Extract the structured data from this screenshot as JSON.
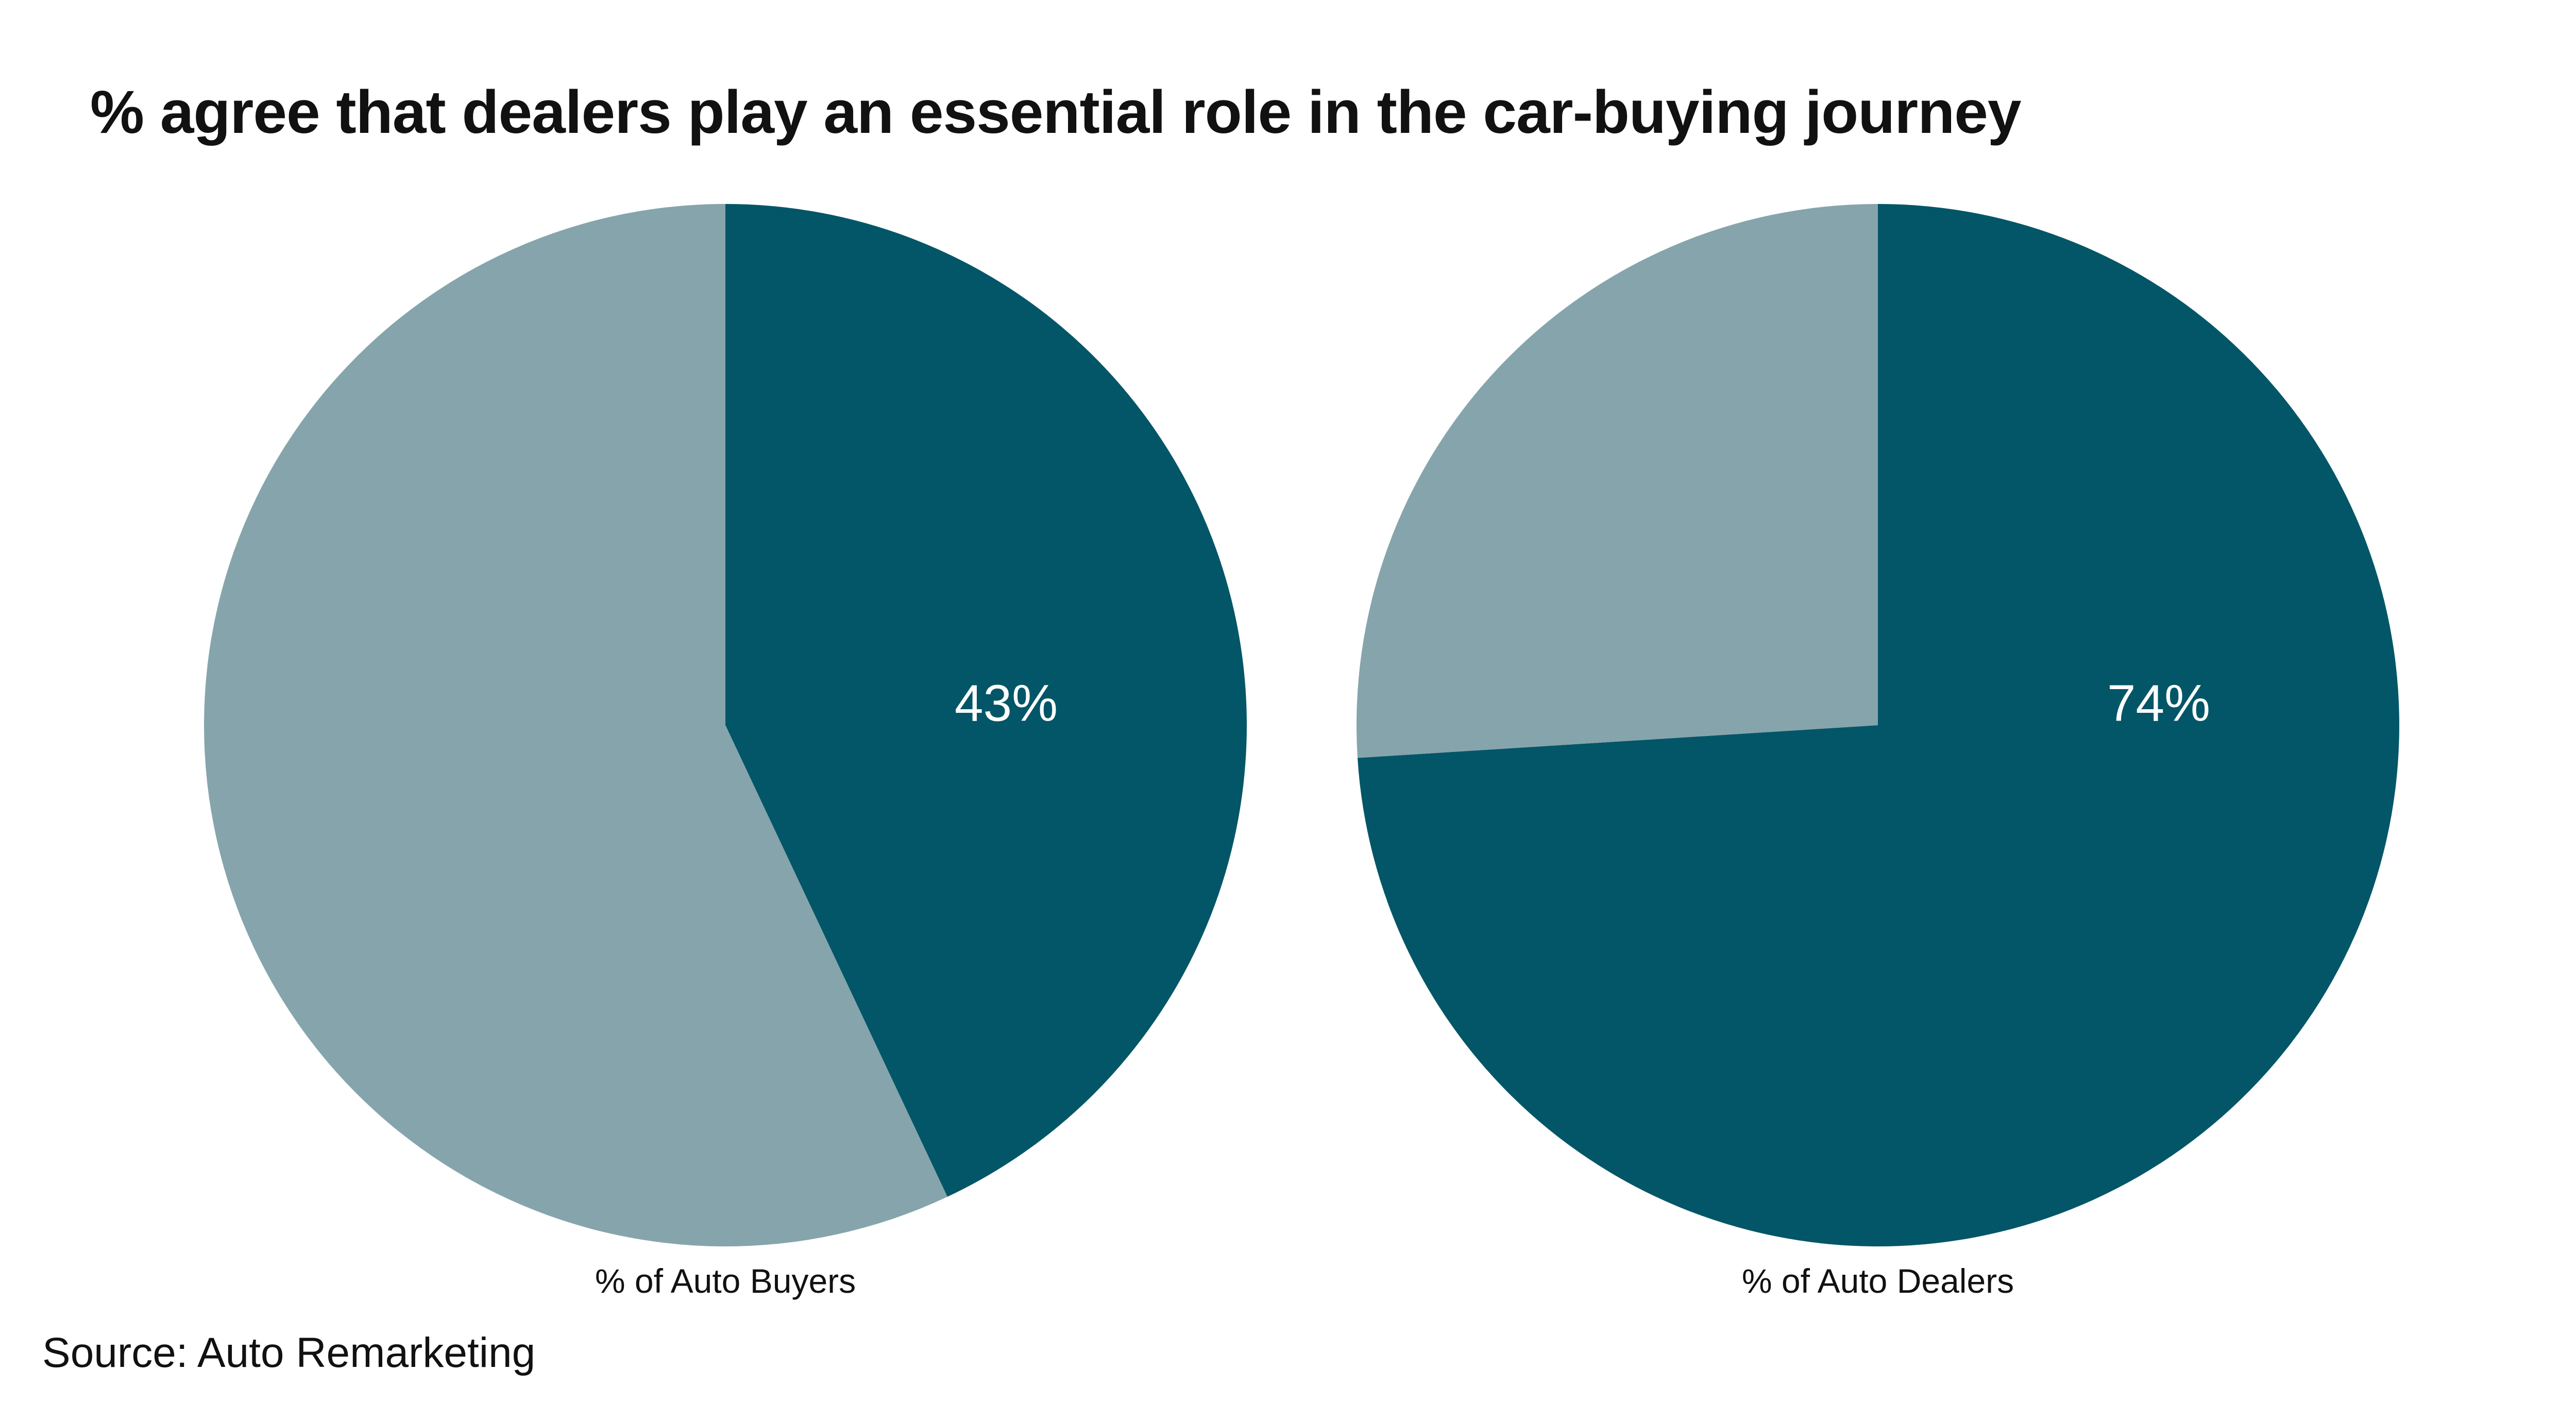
{
  "title": "% agree that dealers play an essential role in the car-buying journey",
  "source": "Source: Auto Remarketing",
  "colors": {
    "highlight": "#025667",
    "remainder": "#86a4ac",
    "label_text": "#ffffff"
  },
  "chart_data": [
    {
      "type": "pie",
      "label": "% of Auto Buyers",
      "slices": [
        {
          "value": 43,
          "label": "43%",
          "color": "#025667"
        },
        {
          "value": 57,
          "label": "",
          "color": "#86a4ac"
        }
      ]
    },
    {
      "type": "pie",
      "label": "% of Auto Dealers",
      "slices": [
        {
          "value": 74,
          "label": "74%",
          "color": "#025667"
        },
        {
          "value": 26,
          "label": "",
          "color": "#86a4ac"
        }
      ]
    }
  ]
}
